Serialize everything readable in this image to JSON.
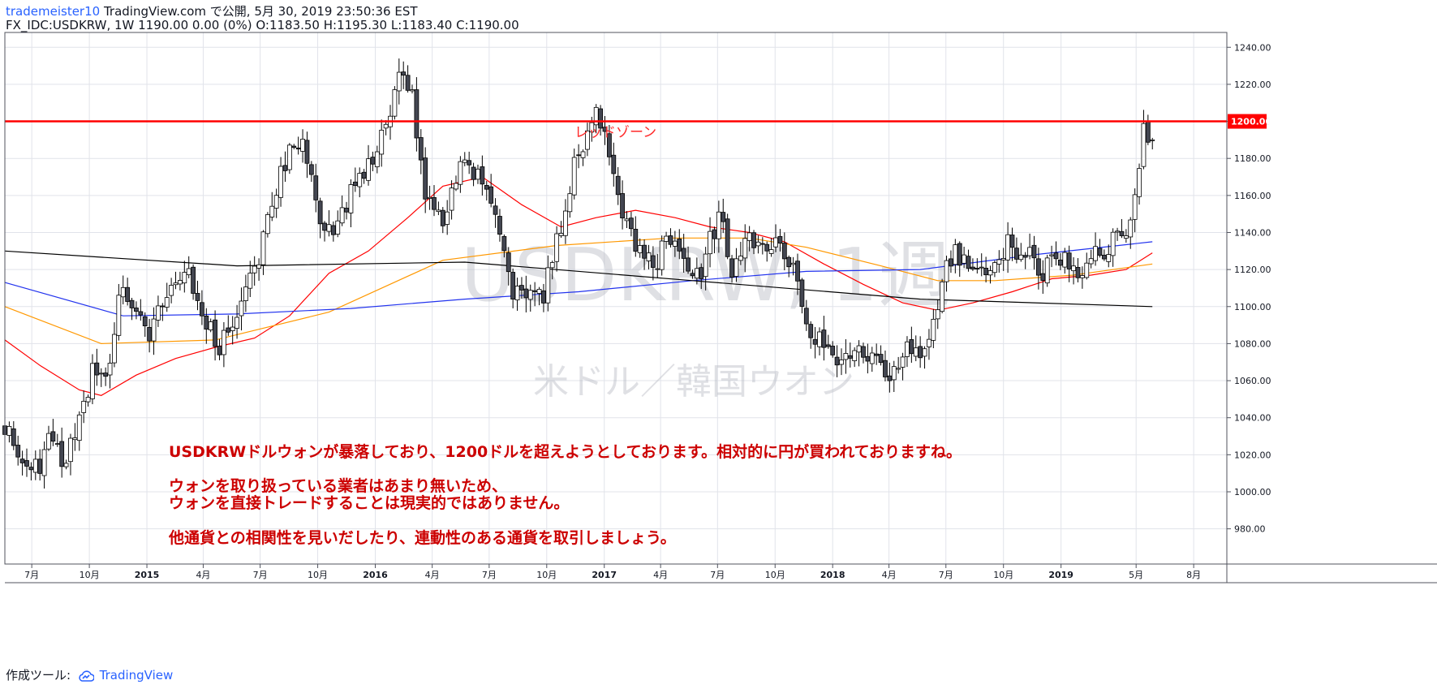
{
  "header": {
    "user": "trademeister10",
    "published": "TradingView.com で公開, 5月 30, 2019 23:50:36 EST",
    "ohlc_line": "FX_IDC:USDKRW, 1W 1190.00 0.00 (0%) O:1183.50 H:1195.30 L:1183.40 C:1190.00"
  },
  "footer": {
    "made_with": "作成ツール:",
    "brand": "TradingView"
  },
  "chart_data": {
    "type": "candlestick",
    "symbol": "FX_IDC:USDKRW",
    "interval": "1W",
    "watermark": {
      "title": "USDKRW, 1週",
      "subtitle": "米ドル／韓国ウオン"
    },
    "ylim": [
      961,
      1248
    ],
    "y_ticks": [
      980,
      1000,
      1020,
      1040,
      1060,
      1080,
      1100,
      1120,
      1140,
      1160,
      1180,
      1200,
      1220,
      1240
    ],
    "y_tick_labels": [
      "980.00",
      "1000.00",
      "1020.00",
      "1040.00",
      "1060.00",
      "1080.00",
      "1100.00",
      "1120.00",
      "1140.00",
      "1160.00",
      "1180.00",
      "1200.00",
      "1220.00",
      "1240.00"
    ],
    "x_range": [
      "2014-05-19",
      "2019-09-23"
    ],
    "x_ticks": [
      {
        "date": "2014-07-01",
        "label": "7月"
      },
      {
        "date": "2014-10-01",
        "label": "10月"
      },
      {
        "date": "2015-01-01",
        "label": "2015"
      },
      {
        "date": "2015-04-01",
        "label": "4月"
      },
      {
        "date": "2015-07-01",
        "label": "7月"
      },
      {
        "date": "2015-10-01",
        "label": "10月"
      },
      {
        "date": "2016-01-01",
        "label": "2016"
      },
      {
        "date": "2016-04-01",
        "label": "4月"
      },
      {
        "date": "2016-07-01",
        "label": "7月"
      },
      {
        "date": "2016-10-01",
        "label": "10月"
      },
      {
        "date": "2017-01-01",
        "label": "2017"
      },
      {
        "date": "2017-04-01",
        "label": "4月"
      },
      {
        "date": "2017-07-01",
        "label": "7月"
      },
      {
        "date": "2017-10-01",
        "label": "10月"
      },
      {
        "date": "2018-01-01",
        "label": "2018"
      },
      {
        "date": "2018-04-01",
        "label": "4月"
      },
      {
        "date": "2018-07-01",
        "label": "7月"
      },
      {
        "date": "2018-10-01",
        "label": "10月"
      },
      {
        "date": "2019-01-01",
        "label": "2019"
      },
      {
        "date": "2019-05-01",
        "label": "5月"
      },
      {
        "date": "2019-08-01",
        "label": "8月"
      }
    ],
    "price_marker": {
      "value": 1200.0,
      "label": "1200.00",
      "color": "#ff0000"
    },
    "horizontal_line": {
      "value": 1200.0,
      "label": "レッドゾーン",
      "color": "#ff0000"
    },
    "candle_colors": {
      "up": "#ffffff",
      "down": "#434651",
      "border": "#000000"
    },
    "anchors": [
      {
        "date": "2014-05-19",
        "close": 1035
      },
      {
        "date": "2014-06-16",
        "close": 1018
      },
      {
        "date": "2014-07-14",
        "close": 1012
      },
      {
        "date": "2014-07-28",
        "close": 1028
      },
      {
        "date": "2014-08-25",
        "close": 1015
      },
      {
        "date": "2014-09-15",
        "close": 1040
      },
      {
        "date": "2014-10-06",
        "close": 1065
      },
      {
        "date": "2014-10-27",
        "close": 1058
      },
      {
        "date": "2014-11-24",
        "close": 1115
      },
      {
        "date": "2014-12-08",
        "close": 1100
      },
      {
        "date": "2015-01-05",
        "close": 1085
      },
      {
        "date": "2015-02-02",
        "close": 1108
      },
      {
        "date": "2015-03-09",
        "close": 1118
      },
      {
        "date": "2015-03-30",
        "close": 1095
      },
      {
        "date": "2015-04-27",
        "close": 1078
      },
      {
        "date": "2015-05-25",
        "close": 1098
      },
      {
        "date": "2015-06-22",
        "close": 1118
      },
      {
        "date": "2015-07-20",
        "close": 1160
      },
      {
        "date": "2015-08-17",
        "close": 1183
      },
      {
        "date": "2015-09-07",
        "close": 1195
      },
      {
        "date": "2015-10-05",
        "close": 1145
      },
      {
        "date": "2015-10-26",
        "close": 1135
      },
      {
        "date": "2015-11-23",
        "close": 1160
      },
      {
        "date": "2015-12-21",
        "close": 1175
      },
      {
        "date": "2016-01-18",
        "close": 1195
      },
      {
        "date": "2016-02-15",
        "close": 1230
      },
      {
        "date": "2016-02-29",
        "close": 1215
      },
      {
        "date": "2016-03-21",
        "close": 1160
      },
      {
        "date": "2016-04-18",
        "close": 1145
      },
      {
        "date": "2016-05-16",
        "close": 1180
      },
      {
        "date": "2016-06-13",
        "close": 1170
      },
      {
        "date": "2016-07-04",
        "close": 1155
      },
      {
        "date": "2016-08-08",
        "close": 1108
      },
      {
        "date": "2016-09-05",
        "close": 1110
      },
      {
        "date": "2016-09-26",
        "close": 1105
      },
      {
        "date": "2016-10-17",
        "close": 1135
      },
      {
        "date": "2016-11-14",
        "close": 1175
      },
      {
        "date": "2016-12-19",
        "close": 1205
      },
      {
        "date": "2017-01-02",
        "close": 1195
      },
      {
        "date": "2017-01-30",
        "close": 1150
      },
      {
        "date": "2017-02-27",
        "close": 1130
      },
      {
        "date": "2017-03-20",
        "close": 1120
      },
      {
        "date": "2017-04-10",
        "close": 1135
      },
      {
        "date": "2017-05-08",
        "close": 1125
      },
      {
        "date": "2017-06-05",
        "close": 1120
      },
      {
        "date": "2017-07-03",
        "close": 1150
      },
      {
        "date": "2017-07-24",
        "close": 1120
      },
      {
        "date": "2017-08-21",
        "close": 1135
      },
      {
        "date": "2017-09-18",
        "close": 1135
      },
      {
        "date": "2017-10-09",
        "close": 1135
      },
      {
        "date": "2017-10-30",
        "close": 1120
      },
      {
        "date": "2017-11-20",
        "close": 1090
      },
      {
        "date": "2017-12-18",
        "close": 1080
      },
      {
        "date": "2018-01-08",
        "close": 1065
      },
      {
        "date": "2018-02-05",
        "close": 1082
      },
      {
        "date": "2018-03-05",
        "close": 1070
      },
      {
        "date": "2018-04-02",
        "close": 1062
      },
      {
        "date": "2018-04-30",
        "close": 1075
      },
      {
        "date": "2018-05-21",
        "close": 1073
      },
      {
        "date": "2018-06-11",
        "close": 1090
      },
      {
        "date": "2018-06-25",
        "close": 1118
      },
      {
        "date": "2018-07-16",
        "close": 1130
      },
      {
        "date": "2018-08-13",
        "close": 1120
      },
      {
        "date": "2018-09-10",
        "close": 1118
      },
      {
        "date": "2018-10-08",
        "close": 1135
      },
      {
        "date": "2018-11-05",
        "close": 1128
      },
      {
        "date": "2018-12-03",
        "close": 1120
      },
      {
        "date": "2018-12-31",
        "close": 1125
      },
      {
        "date": "2019-01-28",
        "close": 1120
      },
      {
        "date": "2019-02-25",
        "close": 1128
      },
      {
        "date": "2019-03-25",
        "close": 1135
      },
      {
        "date": "2019-04-15",
        "close": 1140
      },
      {
        "date": "2019-04-29",
        "close": 1165
      },
      {
        "date": "2019-05-13",
        "close": 1193
      },
      {
        "date": "2019-05-27",
        "close": 1190
      }
    ],
    "moving_averages": [
      {
        "color": "#ff0000",
        "points": [
          [
            "2014-05-19",
            1082
          ],
          [
            "2014-07-15",
            1068
          ],
          [
            "2014-09-15",
            1055
          ],
          [
            "2014-10-20",
            1052
          ],
          [
            "2014-12-15",
            1063
          ],
          [
            "2015-02-16",
            1072
          ],
          [
            "2015-04-20",
            1078
          ],
          [
            "2015-06-22",
            1083
          ],
          [
            "2015-08-17",
            1095
          ],
          [
            "2015-10-19",
            1118
          ],
          [
            "2015-12-21",
            1130
          ],
          [
            "2016-02-22",
            1148
          ],
          [
            "2016-04-18",
            1165
          ],
          [
            "2016-06-20",
            1170
          ],
          [
            "2016-08-22",
            1155
          ],
          [
            "2016-10-24",
            1143
          ],
          [
            "2016-12-19",
            1148
          ],
          [
            "2017-02-20",
            1152
          ],
          [
            "2017-04-24",
            1148
          ],
          [
            "2017-06-19",
            1143
          ],
          [
            "2017-08-21",
            1140
          ],
          [
            "2017-10-16",
            1135
          ],
          [
            "2017-12-18",
            1123
          ],
          [
            "2018-02-19",
            1112
          ],
          [
            "2018-04-23",
            1102
          ],
          [
            "2018-06-18",
            1098
          ],
          [
            "2018-08-13",
            1102
          ],
          [
            "2018-10-15",
            1108
          ],
          [
            "2018-12-17",
            1115
          ],
          [
            "2019-02-18",
            1117
          ],
          [
            "2019-04-15",
            1120
          ],
          [
            "2019-05-27",
            1129
          ]
        ]
      },
      {
        "color": "#ff9800",
        "points": [
          [
            "2014-05-19",
            1100
          ],
          [
            "2014-10-20",
            1080
          ],
          [
            "2015-04-20",
            1082
          ],
          [
            "2015-10-19",
            1097
          ],
          [
            "2016-04-18",
            1125
          ],
          [
            "2016-10-17",
            1133
          ],
          [
            "2017-04-17",
            1137
          ],
          [
            "2017-08-21",
            1137
          ],
          [
            "2017-11-20",
            1132
          ],
          [
            "2018-03-19",
            1122
          ],
          [
            "2018-06-18",
            1114
          ],
          [
            "2018-09-17",
            1114
          ],
          [
            "2019-01-21",
            1117
          ],
          [
            "2019-05-27",
            1123
          ]
        ]
      },
      {
        "color": "#2233ee",
        "points": [
          [
            "2014-05-19",
            1113
          ],
          [
            "2014-11-24",
            1095
          ],
          [
            "2015-05-25",
            1096
          ],
          [
            "2015-11-23",
            1099
          ],
          [
            "2016-05-23",
            1104
          ],
          [
            "2016-11-21",
            1108
          ],
          [
            "2017-05-22",
            1114
          ],
          [
            "2017-11-20",
            1119
          ],
          [
            "2018-05-21",
            1120
          ],
          [
            "2018-11-19",
            1128
          ],
          [
            "2019-05-27",
            1135
          ]
        ]
      },
      {
        "color": "#000000",
        "points": [
          [
            "2014-05-19",
            1130
          ],
          [
            "2015-05-25",
            1122
          ],
          [
            "2016-05-23",
            1124
          ],
          [
            "2017-05-22",
            1114
          ],
          [
            "2018-05-21",
            1104
          ],
          [
            "2019-05-27",
            1100
          ]
        ]
      }
    ],
    "annotations": [
      "USDKRWドルウォンが暴落しており、1200ドルを超えようとしております。相対的に円が買われておりますね。",
      "ウォンを取り扱っている業者はあまり無いため、",
      "ウォンを直接トレードすることは現実的ではありません。",
      "他通貨との相関性を見いだしたり、連動性のある通貨を取引しましょう。"
    ],
    "annotation_color": "#cc0000",
    "grid": true
  }
}
